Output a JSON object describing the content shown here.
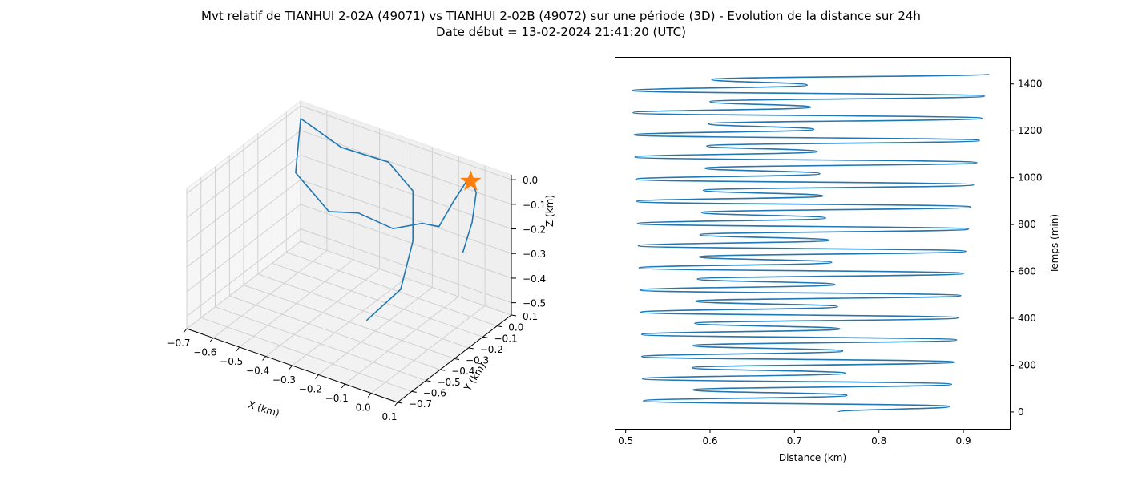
{
  "figure": {
    "title_line1": "Mvt relatif de TIANHUI 2-02A (49071) vs TIANHUI 2-02B (49072) sur une période (3D) - Evolution de la distance sur 24h",
    "title_line2": "Date début = 13-02-2024 21:41:20 (UTC)"
  },
  "colors": {
    "series": "#1f77b4",
    "star": "#ff7f0e",
    "pane": "#f2f2f2",
    "grid": "#d0d0d0"
  },
  "chart_data": [
    {
      "type": "line3d",
      "xlabel": "X (km)",
      "ylabel": "Y (km)",
      "zlabel": "Z (km)",
      "xlim": [
        -0.7,
        0.1
      ],
      "ylim": [
        -0.7,
        0.1
      ],
      "zlim": [
        -0.55,
        0.02
      ],
      "x_ticks": [
        "−0.7",
        "−0.6",
        "−0.5",
        "−0.4",
        "−0.3",
        "−0.2",
        "−0.1",
        "0.0",
        "0.1"
      ],
      "y_ticks": [
        "0.1",
        "0.0",
        "−0.1",
        "−0.2",
        "−0.3",
        "−0.4",
        "−0.5",
        "−0.6",
        "−0.7"
      ],
      "z_ticks": [
        "0.0",
        "−0.1",
        "−0.2",
        "−0.3",
        "−0.4",
        "−0.5"
      ],
      "grid": true,
      "series": [
        {
          "marker": "line",
          "points": [
            [
              -0.05,
              -0.64,
              -0.3
            ],
            [
              -0.05,
              -0.4,
              -0.28
            ],
            [
              -0.09,
              -0.24,
              -0.17
            ],
            [
              -0.16,
              -0.11,
              -0.05
            ],
            [
              -0.28,
              -0.06,
              0.0
            ],
            [
              -0.47,
              -0.04,
              -0.02
            ],
            [
              -0.64,
              -0.01,
              0.02
            ],
            [
              -0.67,
              0.01,
              -0.22
            ],
            [
              -0.56,
              0.04,
              -0.35
            ],
            [
              -0.47,
              0.08,
              -0.34
            ],
            [
              -0.36,
              0.12,
              -0.38
            ],
            [
              -0.26,
              0.14,
              -0.33
            ],
            [
              -0.18,
              0.11,
              -0.3
            ],
            [
              -0.1,
              0.06,
              -0.15
            ],
            [
              -0.02,
              0.03,
              0.0
            ],
            [
              0.01,
              0.02,
              -0.05
            ],
            [
              0.0,
              0.01,
              -0.17
            ],
            [
              -0.03,
              0.0,
              -0.3
            ]
          ]
        },
        {
          "marker": "star",
          "points": [
            [
              0.0,
              0.0,
              0.0
            ]
          ]
        }
      ]
    },
    {
      "type": "line",
      "xlabel": "Distance (km)",
      "ylabel": "Temps (min)",
      "xlim": [
        0.488,
        0.955
      ],
      "ylim": [
        -72,
        1512
      ],
      "x_ticks": [
        0.5,
        0.6,
        0.7,
        0.8,
        0.9
      ],
      "y_ticks": [
        0,
        200,
        400,
        600,
        800,
        1000,
        1200,
        1400
      ],
      "yaxis_position": "right",
      "grid": false,
      "cycles": [
        [
          0.752,
          0.884,
          0.521,
          0.762,
          0.58
        ],
        [
          0.58,
          0.886,
          0.52,
          0.76,
          0.579
        ],
        [
          0.579,
          0.889,
          0.519,
          0.757,
          0.58
        ],
        [
          0.58,
          0.892,
          0.519,
          0.754,
          0.582
        ],
        [
          0.582,
          0.894,
          0.518,
          0.751,
          0.583
        ],
        [
          0.583,
          0.897,
          0.517,
          0.748,
          0.585
        ],
        [
          0.585,
          0.9,
          0.516,
          0.744,
          0.587
        ],
        [
          0.587,
          0.903,
          0.515,
          0.741,
          0.588
        ],
        [
          0.588,
          0.906,
          0.514,
          0.737,
          0.59
        ],
        [
          0.59,
          0.909,
          0.513,
          0.734,
          0.592
        ],
        [
          0.592,
          0.912,
          0.512,
          0.73,
          0.594
        ],
        [
          0.594,
          0.916,
          0.511,
          0.727,
          0.596
        ],
        [
          0.596,
          0.919,
          0.51,
          0.723,
          0.598
        ],
        [
          0.598,
          0.922,
          0.509,
          0.719,
          0.6
        ],
        [
          0.6,
          0.925,
          0.508,
          0.715,
          0.602
        ],
        [
          0.602,
          0.93
        ]
      ],
      "cycle_minutes": 94.6
    }
  ]
}
